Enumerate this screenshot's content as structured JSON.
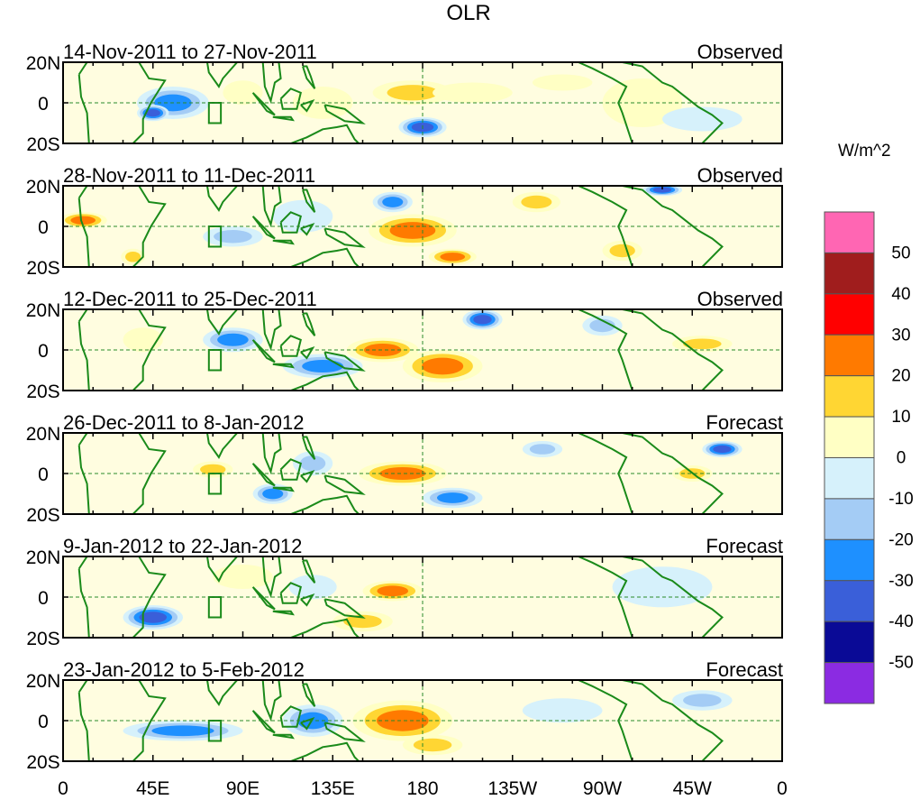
{
  "chart_data": {
    "type": "heatmap",
    "title": "OLR",
    "colorbar_label": "W/m^2",
    "colorbar_levels": [
      -50,
      -40,
      -30,
      -20,
      -10,
      0,
      10,
      20,
      30,
      40,
      50
    ],
    "colorbar_colors": [
      "#8b2be2",
      "#0a0a96",
      "#3a5fd9",
      "#1e90ff",
      "#a4ccf5",
      "#d6f1fb",
      "#ffffc4",
      "#ffd633",
      "#ff7a00",
      "#ff0000",
      "#a01d1d",
      "#ff66b3"
    ],
    "x_ticks": [
      "0",
      "45E",
      "90E",
      "135E",
      "180",
      "135W",
      "90W",
      "45W",
      "0"
    ],
    "x_range": [
      0,
      360
    ],
    "y_ticks": [
      "20N",
      "0",
      "20S"
    ],
    "y_range": [
      -20,
      20
    ],
    "panels": [
      {
        "period": "14-Nov-2011 to 27-Nov-2011",
        "kind": "Observed",
        "anomalies": [
          {
            "lon": 55,
            "lat": 0,
            "rlon": 18,
            "rlat": 8,
            "value": -35
          },
          {
            "lon": 45,
            "lat": -5,
            "rlon": 8,
            "rlat": 4,
            "value": -48
          },
          {
            "lon": 90,
            "lat": 5,
            "rlon": 10,
            "rlat": 6,
            "value": 12
          },
          {
            "lon": 130,
            "lat": 0,
            "rlon": 15,
            "rlat": 8,
            "value": 18
          },
          {
            "lon": 175,
            "lat": 5,
            "rlon": 20,
            "rlat": 6,
            "value": 28
          },
          {
            "lon": 180,
            "lat": -12,
            "rlon": 12,
            "rlat": 5,
            "value": -42
          },
          {
            "lon": 205,
            "lat": 5,
            "rlon": 20,
            "rlat": 5,
            "value": 15
          },
          {
            "lon": 250,
            "lat": 10,
            "rlon": 15,
            "rlat": 4,
            "value": 12
          },
          {
            "lon": 290,
            "lat": 0,
            "rlon": 20,
            "rlat": 12,
            "value": 8
          },
          {
            "lon": 320,
            "lat": -8,
            "rlon": 20,
            "rlat": 6,
            "value": -12
          }
        ]
      },
      {
        "period": "28-Nov-2011 to 11-Dec-2011",
        "kind": "Observed",
        "anomalies": [
          {
            "lon": 10,
            "lat": 3,
            "rlon": 12,
            "rlat": 4,
            "value": 30
          },
          {
            "lon": 35,
            "lat": -15,
            "rlon": 6,
            "rlat": 4,
            "value": 28
          },
          {
            "lon": 85,
            "lat": -5,
            "rlon": 15,
            "rlat": 5,
            "value": -25
          },
          {
            "lon": 120,
            "lat": 5,
            "rlon": 15,
            "rlat": 8,
            "value": -18
          },
          {
            "lon": 175,
            "lat": -2,
            "rlon": 22,
            "rlat": 8,
            "value": 38
          },
          {
            "lon": 195,
            "lat": -15,
            "rlon": 12,
            "rlat": 4,
            "value": 30
          },
          {
            "lon": 165,
            "lat": 12,
            "rlon": 10,
            "rlat": 5,
            "value": -32
          },
          {
            "lon": 237,
            "lat": 12,
            "rlon": 12,
            "rlat": 5,
            "value": 25
          },
          {
            "lon": 300,
            "lat": 18,
            "rlon": 10,
            "rlat": 3,
            "value": -42
          },
          {
            "lon": 280,
            "lat": -12,
            "rlon": 10,
            "rlat": 5,
            "value": 20
          }
        ]
      },
      {
        "period": "12-Dec-2011 to 25-Dec-2011",
        "kind": "Observed",
        "anomalies": [
          {
            "lon": 85,
            "lat": 5,
            "rlon": 15,
            "rlat": 6,
            "value": -30
          },
          {
            "lon": 130,
            "lat": -8,
            "rlon": 20,
            "rlat": 6,
            "value": -35
          },
          {
            "lon": 160,
            "lat": 0,
            "rlon": 18,
            "rlat": 6,
            "value": 35
          },
          {
            "lon": 190,
            "lat": -8,
            "rlon": 20,
            "rlat": 8,
            "value": 32
          },
          {
            "lon": 210,
            "lat": 15,
            "rlon": 10,
            "rlat": 5,
            "value": -42
          },
          {
            "lon": 320,
            "lat": 3,
            "rlon": 15,
            "rlat": 4,
            "value": 28
          },
          {
            "lon": 270,
            "lat": 12,
            "rlon": 10,
            "rlat": 5,
            "value": -20
          },
          {
            "lon": 40,
            "lat": 5,
            "rlon": 10,
            "rlat": 6,
            "value": 12
          }
        ]
      },
      {
        "period": "26-Dec-2011 to 8-Jan-2012",
        "kind": "Forecast",
        "anomalies": [
          {
            "lon": 75,
            "lat": 2,
            "rlon": 10,
            "rlat": 4,
            "value": 28
          },
          {
            "lon": 170,
            "lat": 0,
            "rlon": 22,
            "rlat": 6,
            "value": 38
          },
          {
            "lon": 105,
            "lat": -10,
            "rlon": 10,
            "rlat": 5,
            "value": -38
          },
          {
            "lon": 125,
            "lat": 5,
            "rlon": 10,
            "rlat": 6,
            "value": -25
          },
          {
            "lon": 195,
            "lat": -12,
            "rlon": 15,
            "rlat": 5,
            "value": -32
          },
          {
            "lon": 330,
            "lat": 12,
            "rlon": 10,
            "rlat": 4,
            "value": -42
          },
          {
            "lon": 315,
            "lat": 0,
            "rlon": 10,
            "rlat": 4,
            "value": 25
          },
          {
            "lon": 240,
            "lat": 12,
            "rlon": 10,
            "rlat": 4,
            "value": -20
          }
        ]
      },
      {
        "period": "9-Jan-2012 to 22-Jan-2012",
        "kind": "Forecast",
        "anomalies": [
          {
            "lon": 45,
            "lat": -10,
            "rlon": 15,
            "rlat": 6,
            "value": -40
          },
          {
            "lon": 165,
            "lat": 3,
            "rlon": 15,
            "rlat": 5,
            "value": 32
          },
          {
            "lon": 150,
            "lat": -12,
            "rlon": 15,
            "rlat": 5,
            "value": 28
          },
          {
            "lon": 125,
            "lat": 5,
            "rlon": 12,
            "rlat": 6,
            "value": -15
          },
          {
            "lon": 90,
            "lat": 10,
            "rlon": 15,
            "rlat": 6,
            "value": 8
          },
          {
            "lon": 300,
            "lat": 5,
            "rlon": 25,
            "rlat": 10,
            "value": -8
          }
        ]
      },
      {
        "period": "23-Jan-2012 to 5-Feb-2012",
        "kind": "Forecast",
        "anomalies": [
          {
            "lon": 170,
            "lat": 0,
            "rlon": 25,
            "rlat": 10,
            "value": 35
          },
          {
            "lon": 185,
            "lat": -12,
            "rlon": 15,
            "rlat": 5,
            "value": 22
          },
          {
            "lon": 60,
            "lat": -5,
            "rlon": 30,
            "rlat": 5,
            "value": -35
          },
          {
            "lon": 125,
            "lat": 0,
            "rlon": 15,
            "rlat": 8,
            "value": -30
          },
          {
            "lon": 320,
            "lat": 10,
            "rlon": 15,
            "rlat": 5,
            "value": -28
          },
          {
            "lon": 250,
            "lat": 5,
            "rlon": 20,
            "rlat": 6,
            "value": -10
          }
        ]
      }
    ]
  }
}
